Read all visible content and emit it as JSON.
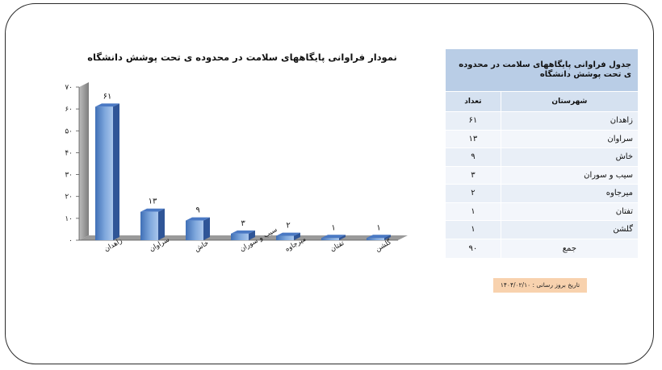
{
  "chart_data": {
    "type": "bar",
    "title": "نمودار فراوانی پایگاههای سلامت در محدوده ی تحت پوشش دانشگاه",
    "categories": [
      "زاهدان",
      "سراوان",
      "خاش",
      "سیب و سوران",
      "میرجاوه",
      "تفتان",
      "گلشن"
    ],
    "values": [
      61,
      13,
      9,
      3,
      2,
      1,
      1
    ],
    "value_labels": [
      "۶۱",
      "۱۳",
      "۹",
      "۳",
      "۲",
      "۱",
      "۱"
    ],
    "ylim": [
      0,
      70
    ],
    "yticks": [
      0,
      10,
      20,
      30,
      40,
      50,
      60,
      70
    ],
    "ytick_labels": [
      "۰",
      "۱۰",
      "۲۰",
      "۳۰",
      "۴۰",
      "۵۰",
      "۶۰",
      "۷۰"
    ],
    "grid": false,
    "legend": "none",
    "bar_color": "#7fa8dd"
  },
  "table": {
    "title": "جدول فراوانی پایگاههای سلامت در محدوده ی تحت پوشش دانشگاه",
    "headers": [
      "شهرستان",
      "تعداد"
    ],
    "rows": [
      {
        "city": "زاهدان",
        "count": "۶۱"
      },
      {
        "city": "سراوان",
        "count": "۱۳"
      },
      {
        "city": "خاش",
        "count": "۹"
      },
      {
        "city": "سیب و سوران",
        "count": "۳"
      },
      {
        "city": "میرجاوه",
        "count": "۲"
      },
      {
        "city": "تفتان",
        "count": "۱"
      },
      {
        "city": "گلشن",
        "count": "۱"
      }
    ],
    "total_label": "جمع",
    "total_value": "۹۰"
  },
  "update_date": "تاریخ بروز رسانی : ۱۴۰۴/۰۲/۱۰"
}
